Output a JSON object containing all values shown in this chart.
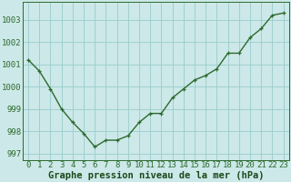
{
  "x": [
    0,
    1,
    2,
    3,
    4,
    5,
    6,
    7,
    8,
    9,
    10,
    11,
    12,
    13,
    14,
    15,
    16,
    17,
    18,
    19,
    20,
    21,
    22,
    23
  ],
  "y": [
    1001.2,
    1000.7,
    999.9,
    999.0,
    998.4,
    997.9,
    997.3,
    997.6,
    997.6,
    997.8,
    998.4,
    998.8,
    998.8,
    999.5,
    999.9,
    1000.3,
    1000.5,
    1000.8,
    1001.5,
    1001.5,
    1002.2,
    1002.6,
    1003.2,
    1003.3
  ],
  "line_color": "#2d6a2d",
  "marker": "+",
  "bg_color": "#cce8e8",
  "grid_color": "#99cccc",
  "xlabel": "Graphe pression niveau de la mer (hPa)",
  "xlabel_color": "#1a4a1a",
  "tick_color": "#2d6a2d",
  "ylim": [
    996.7,
    1003.8
  ],
  "yticks": [
    997,
    998,
    999,
    1000,
    1001,
    1002,
    1003
  ],
  "xticks": [
    0,
    1,
    2,
    3,
    4,
    5,
    6,
    7,
    8,
    9,
    10,
    11,
    12,
    13,
    14,
    15,
    16,
    17,
    18,
    19,
    20,
    21,
    22,
    23
  ],
  "spine_color": "#2d6a2d",
  "xlabel_fontsize": 7.5,
  "tick_fontsize": 6.5,
  "line_width": 1.0,
  "marker_size": 3.5,
  "marker_edge_width": 0.9
}
